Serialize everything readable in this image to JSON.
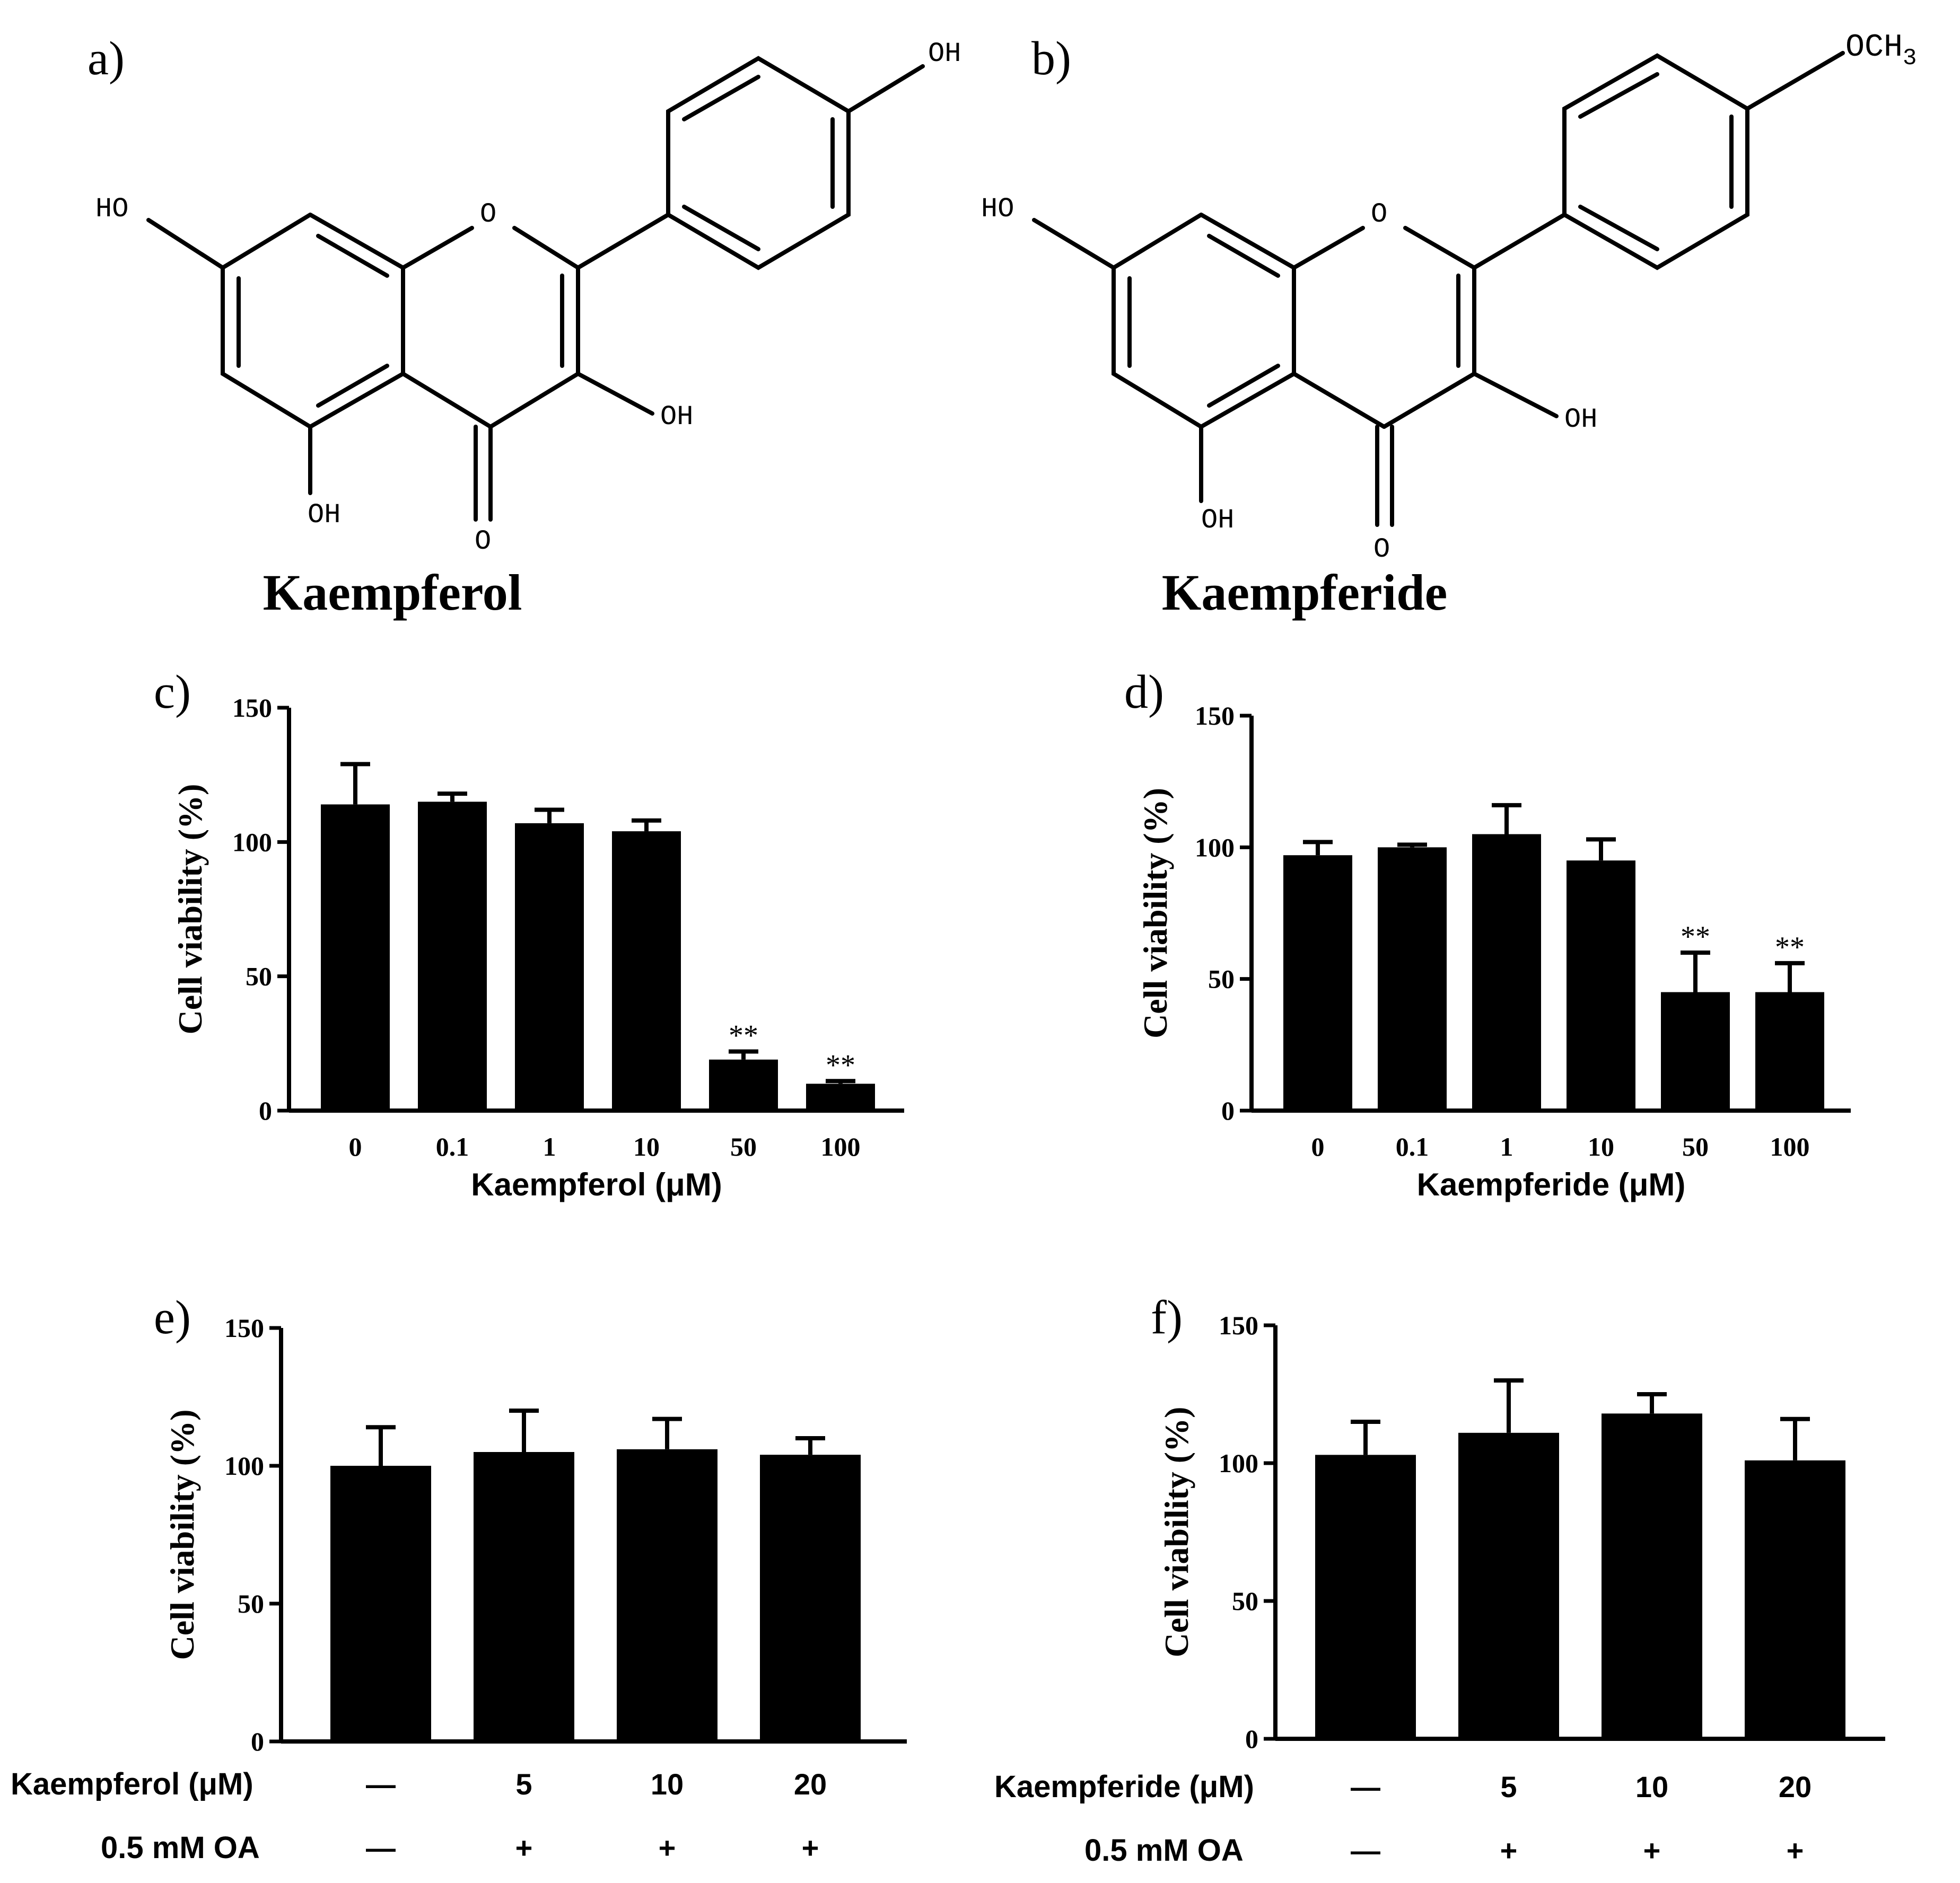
{
  "panels": {
    "a": {
      "letter": "a)",
      "compound": "Kaempferol",
      "atoms": {
        "ho_left": "HO",
        "o_ring": "O",
        "oh_para": "OH",
        "oh_3": "OH",
        "oh_5": "OH",
        "o_keto": "O"
      }
    },
    "b": {
      "letter": "b)",
      "compound": "Kaempferide",
      "atoms": {
        "ho_left": "HO",
        "o_ring": "O",
        "och3_main": "OCH",
        "och3_sub": "3",
        "oh_3": "OH",
        "oh_5": "OH",
        "o_keto": "O"
      }
    },
    "c": {
      "letter": "c)"
    },
    "d": {
      "letter": "d)"
    },
    "e": {
      "letter": "e)"
    },
    "f": {
      "letter": "f)"
    }
  },
  "chart_data": [
    {
      "id": "c",
      "type": "bar",
      "categories": [
        "0",
        "0.1",
        "1",
        "10",
        "50",
        "100"
      ],
      "values": [
        114,
        115,
        107,
        104,
        19,
        10
      ],
      "errors": [
        15,
        3,
        5,
        4,
        3,
        1
      ],
      "significance": [
        "",
        "",
        "",
        "",
        "**",
        "**"
      ],
      "xlabel": "Kaempferol (μM)",
      "ylabel": "Cell viability (%)",
      "ylim": [
        0,
        150
      ],
      "yticks": [
        "0",
        "50",
        "100",
        "150"
      ],
      "grid": false
    },
    {
      "id": "d",
      "type": "bar",
      "categories": [
        "0",
        "0.1",
        "1",
        "10",
        "50",
        "100"
      ],
      "values": [
        97,
        100,
        105,
        95,
        45,
        45
      ],
      "errors": [
        5,
        1,
        11,
        8,
        15,
        11
      ],
      "significance": [
        "",
        "",
        "",
        "",
        "**",
        "**"
      ],
      "xlabel": "Kaempferide (μM)",
      "ylabel": "Cell viability (%)",
      "ylim": [
        0,
        150
      ],
      "yticks": [
        "0",
        "50",
        "100",
        "150"
      ],
      "grid": false
    },
    {
      "id": "e",
      "type": "bar",
      "categories": [
        "—",
        "5",
        "10",
        "20"
      ],
      "values": [
        100,
        105,
        106,
        104
      ],
      "errors": [
        14,
        15,
        11,
        6
      ],
      "row_labels": [
        "Kaempferol (μM)",
        "0.5 mM OA"
      ],
      "oa_row": [
        "—",
        "+",
        "+",
        "+"
      ],
      "ylabel": "Cell viability (%)",
      "ylim": [
        0,
        150
      ],
      "yticks": [
        "0",
        "50",
        "100",
        "150"
      ],
      "grid": false
    },
    {
      "id": "f",
      "type": "bar",
      "categories": [
        "—",
        "5",
        "10",
        "20"
      ],
      "values": [
        103,
        111,
        118,
        101
      ],
      "errors": [
        12,
        19,
        7,
        15
      ],
      "row_labels": [
        "Kaempferide (μM)",
        "0.5 mM OA"
      ],
      "oa_row": [
        "—",
        "+",
        "+",
        "+"
      ],
      "ylabel": "Cell viability (%)",
      "ylim": [
        0,
        150
      ],
      "yticks": [
        "0",
        "50",
        "100",
        "150"
      ],
      "grid": false
    }
  ]
}
